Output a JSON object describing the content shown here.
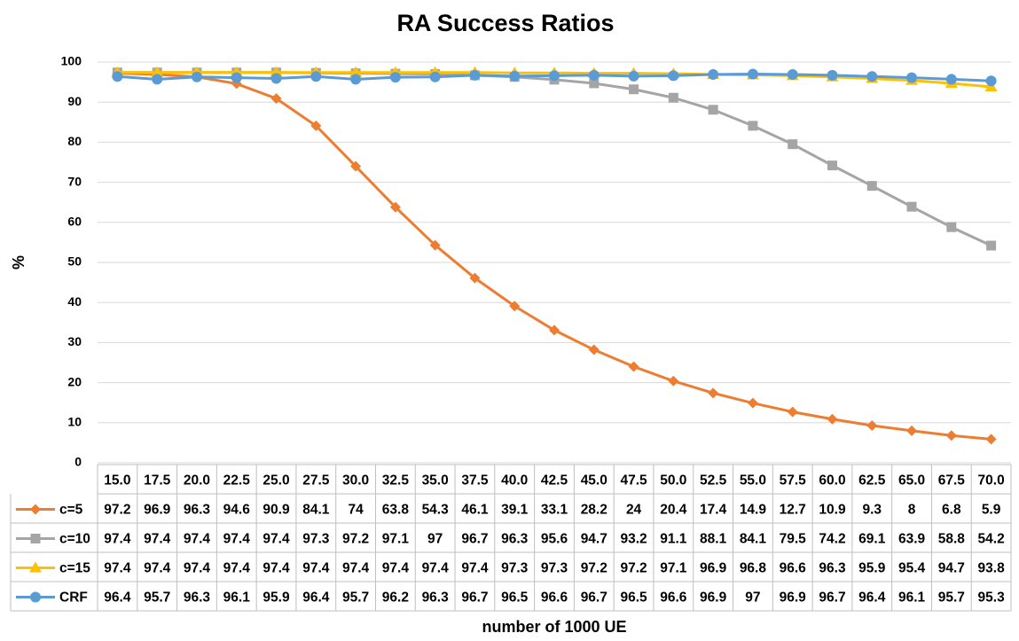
{
  "chart_data": {
    "type": "line",
    "title": "RA Success Ratios",
    "ylabel": "%",
    "xlabel": "number of 1000 UE",
    "categories": [
      "15.0",
      "17.5",
      "20.0",
      "22.5",
      "25.0",
      "27.5",
      "30.0",
      "32.5",
      "35.0",
      "37.5",
      "40.0",
      "42.5",
      "45.0",
      "47.5",
      "50.0",
      "52.5",
      "55.0",
      "57.5",
      "60.0",
      "62.5",
      "65.0",
      "67.5",
      "70.0"
    ],
    "series": [
      {
        "name": "c=5",
        "color": "#ed7d31",
        "marker": "diamond",
        "values": [
          97.2,
          96.9,
          96.3,
          94.6,
          90.9,
          84.1,
          74,
          63.8,
          54.3,
          46.1,
          39.1,
          33.1,
          28.2,
          24,
          20.4,
          17.4,
          14.9,
          12.7,
          10.9,
          9.3,
          8,
          6.8,
          5.9
        ]
      },
      {
        "name": "c=10",
        "color": "#a5a5a5",
        "marker": "square",
        "values": [
          97.4,
          97.4,
          97.4,
          97.4,
          97.4,
          97.3,
          97.2,
          97.1,
          97,
          96.7,
          96.3,
          95.6,
          94.7,
          93.2,
          91.1,
          88.1,
          84.1,
          79.5,
          74.2,
          69.1,
          63.9,
          58.8,
          54.2
        ]
      },
      {
        "name": "c=15",
        "color": "#ffc000",
        "marker": "triangle",
        "values": [
          97.4,
          97.4,
          97.4,
          97.4,
          97.4,
          97.4,
          97.4,
          97.4,
          97.4,
          97.4,
          97.3,
          97.3,
          97.2,
          97.2,
          97.1,
          96.9,
          96.8,
          96.6,
          96.3,
          95.9,
          95.4,
          94.7,
          93.8
        ]
      },
      {
        "name": "CRF",
        "color": "#5b9bd5",
        "marker": "circle",
        "values": [
          96.4,
          95.7,
          96.3,
          96.1,
          95.9,
          96.4,
          95.7,
          96.2,
          96.3,
          96.7,
          96.5,
          96.6,
          96.7,
          96.5,
          96.6,
          96.9,
          97,
          96.9,
          96.7,
          96.4,
          96.1,
          95.7,
          95.3
        ]
      }
    ],
    "ylim": [
      0,
      100
    ],
    "yticks": [
      0,
      10,
      20,
      30,
      40,
      50,
      60,
      70,
      80,
      90,
      100
    ],
    "grid": true
  }
}
